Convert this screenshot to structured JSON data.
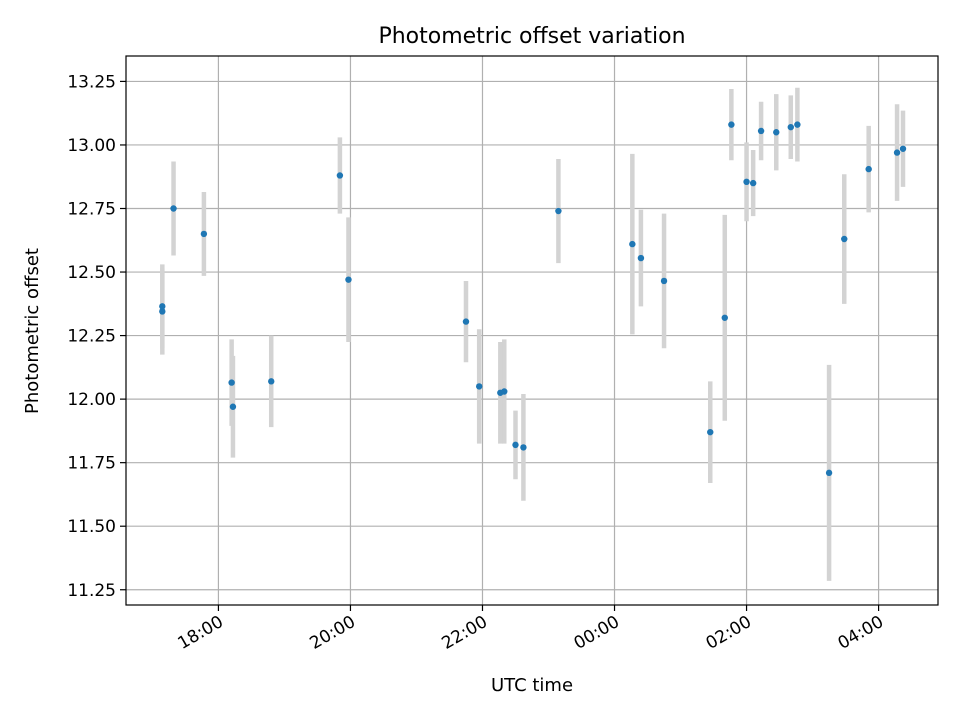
{
  "chart_data": {
    "type": "scatter",
    "title": "Photometric offset variation",
    "xlabel": "UTC time",
    "ylabel": "Photometric offset",
    "x_unit": "hours since 00:00 of first night (values above 24 are after midnight)",
    "xlim": [
      16.6,
      28.9
    ],
    "ylim": [
      11.19,
      13.35
    ],
    "grid": true,
    "x_ticks": [
      {
        "value": 18,
        "label": "18:00"
      },
      {
        "value": 20,
        "label": "20:00"
      },
      {
        "value": 22,
        "label": "22:00"
      },
      {
        "value": 24,
        "label": "00:00"
      },
      {
        "value": 26,
        "label": "02:00"
      },
      {
        "value": 28,
        "label": "04:00"
      }
    ],
    "y_ticks": [
      {
        "value": 11.25,
        "label": "11.25"
      },
      {
        "value": 11.5,
        "label": "11.50"
      },
      {
        "value": 11.75,
        "label": "11.75"
      },
      {
        "value": 12.0,
        "label": "12.00"
      },
      {
        "value": 12.25,
        "label": "12.25"
      },
      {
        "value": 12.5,
        "label": "12.50"
      },
      {
        "value": 12.75,
        "label": "12.75"
      },
      {
        "value": 13.0,
        "label": "13.00"
      },
      {
        "value": 13.25,
        "label": "13.25"
      }
    ],
    "colors": {
      "point": "#1f77b4",
      "error_bar": "#d3d3d3",
      "grid": "#b0b0b0",
      "axis": "#000000"
    },
    "series": [
      {
        "name": "offset",
        "points": [
          {
            "x": 17.15,
            "y": 12.345,
            "yerr": 0.17
          },
          {
            "x": 17.15,
            "y": 12.365,
            "yerr": 0.165
          },
          {
            "x": 17.32,
            "y": 12.75,
            "yerr": 0.185
          },
          {
            "x": 17.78,
            "y": 12.65,
            "yerr": 0.165
          },
          {
            "x": 18.2,
            "y": 12.065,
            "yerr": 0.17
          },
          {
            "x": 18.22,
            "y": 11.97,
            "yerr": 0.2
          },
          {
            "x": 18.8,
            "y": 12.07,
            "yerr": 0.18
          },
          {
            "x": 19.84,
            "y": 12.88,
            "yerr": 0.15
          },
          {
            "x": 19.97,
            "y": 12.47,
            "yerr": 0.245
          },
          {
            "x": 21.75,
            "y": 12.305,
            "yerr": 0.16
          },
          {
            "x": 21.95,
            "y": 12.05,
            "yerr": 0.225
          },
          {
            "x": 22.27,
            "y": 12.025,
            "yerr": 0.2
          },
          {
            "x": 22.33,
            "y": 12.03,
            "yerr": 0.205
          },
          {
            "x": 22.5,
            "y": 11.82,
            "yerr": 0.135
          },
          {
            "x": 22.62,
            "y": 11.81,
            "yerr": 0.21
          },
          {
            "x": 23.15,
            "y": 12.74,
            "yerr": 0.205
          },
          {
            "x": 24.27,
            "y": 12.61,
            "yerr": 0.355
          },
          {
            "x": 24.4,
            "y": 12.555,
            "yerr": 0.19
          },
          {
            "x": 24.75,
            "y": 12.465,
            "yerr": 0.265
          },
          {
            "x": 25.45,
            "y": 11.87,
            "yerr": 0.2
          },
          {
            "x": 25.67,
            "y": 12.32,
            "yerr": 0.405
          },
          {
            "x": 25.77,
            "y": 13.08,
            "yerr": 0.14
          },
          {
            "x": 26.0,
            "y": 12.855,
            "yerr": 0.155
          },
          {
            "x": 26.1,
            "y": 12.85,
            "yerr": 0.13
          },
          {
            "x": 26.22,
            "y": 13.055,
            "yerr": 0.115
          },
          {
            "x": 26.45,
            "y": 13.05,
            "yerr": 0.15
          },
          {
            "x": 26.67,
            "y": 13.07,
            "yerr": 0.125
          },
          {
            "x": 26.77,
            "y": 13.08,
            "yerr": 0.145
          },
          {
            "x": 27.25,
            "y": 11.71,
            "yerr": 0.425
          },
          {
            "x": 27.48,
            "y": 12.63,
            "yerr": 0.255
          },
          {
            "x": 27.85,
            "y": 12.905,
            "yerr": 0.17
          },
          {
            "x": 28.28,
            "y": 12.97,
            "yerr": 0.19
          },
          {
            "x": 28.37,
            "y": 12.985,
            "yerr": 0.15
          }
        ]
      }
    ]
  }
}
